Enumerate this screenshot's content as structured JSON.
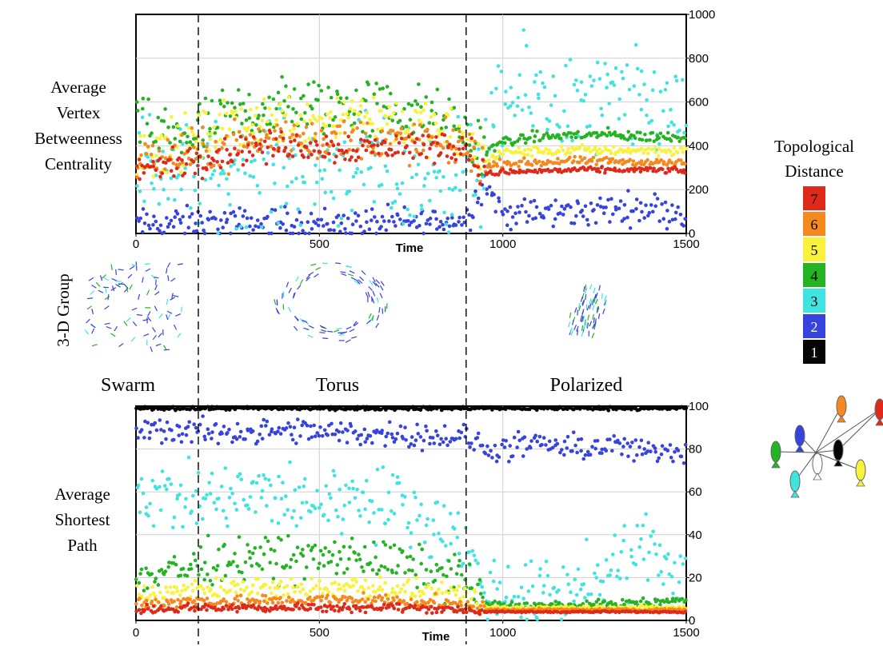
{
  "top_panel": {
    "ylabel_lines": [
      "Average",
      "Vertex",
      "Betweenness",
      "Centrality"
    ]
  },
  "bottom_panel": {
    "ylabel_lines": [
      "Average",
      "Shortest",
      "Path"
    ]
  },
  "group_label": "3-D Group",
  "phases": [
    "Swarm",
    "Torus",
    "Polarized"
  ],
  "legend": {
    "title_lines": [
      "Topological",
      "Distance"
    ],
    "items": [
      {
        "label": "7",
        "color": "#dd2a1a"
      },
      {
        "label": "6",
        "color": "#f5891f"
      },
      {
        "label": "5",
        "color": "#f9f23a"
      },
      {
        "label": "4",
        "color": "#25b324"
      },
      {
        "label": "3",
        "color": "#3fe3e0"
      },
      {
        "label": "2",
        "color": "#3743dd"
      },
      {
        "label": "1",
        "color": "#050505"
      }
    ]
  },
  "network_icon_colors": [
    "#25b324",
    "#3743dd",
    "#f5891f",
    "#dd2a1a",
    "#050505",
    "#f9f23a",
    "#3fe3e0",
    "#ffffff"
  ],
  "chart_data": [
    {
      "type": "scatter",
      "title": "",
      "xlabel": "Time",
      "ylabel": "Average Vertex Betweenness Centrality",
      "xlim": [
        0,
        1500
      ],
      "ylim": [
        0,
        1000
      ],
      "xticks": [
        0,
        500,
        1000,
        1500
      ],
      "yticks": [
        0,
        200,
        400,
        600,
        800,
        1000
      ],
      "phase_boundaries": [
        170,
        900
      ],
      "grid": true,
      "series": [
        {
          "name": "2",
          "color": "#3743dd",
          "x": [
            0,
            150,
            300,
            450,
            600,
            750,
            900,
            950,
            1000,
            1100,
            1200,
            1300,
            1400,
            1500
          ],
          "y": [
            40,
            50,
            45,
            50,
            45,
            50,
            60,
            240,
            90,
            90,
            100,
            110,
            120,
            90
          ]
        },
        {
          "name": "3",
          "color": "#3fe3e0",
          "x": [
            0,
            150,
            300,
            450,
            600,
            750,
            900,
            950,
            1000,
            1100,
            1200,
            1300,
            1400,
            1500
          ],
          "y": [
            330,
            260,
            290,
            290,
            290,
            230,
            280,
            290,
            590,
            640,
            560,
            600,
            580,
            560
          ]
        },
        {
          "name": "4",
          "color": "#25b324",
          "x": [
            0,
            150,
            300,
            450,
            600,
            750,
            900,
            950,
            1000,
            1100,
            1200,
            1300,
            1400,
            1500
          ],
          "y": [
            460,
            450,
            560,
            580,
            580,
            560,
            450,
            370,
            420,
            440,
            450,
            450,
            440,
            440
          ]
        },
        {
          "name": "5",
          "color": "#f9f23a",
          "x": [
            0,
            150,
            300,
            450,
            600,
            750,
            900,
            950,
            1000,
            1100,
            1200,
            1300,
            1400,
            1500
          ],
          "y": [
            360,
            420,
            520,
            510,
            560,
            500,
            420,
            330,
            370,
            375,
            380,
            380,
            380,
            375
          ]
        },
        {
          "name": "6",
          "color": "#f5891f",
          "x": [
            0,
            150,
            300,
            450,
            600,
            750,
            900,
            950,
            1000,
            1100,
            1200,
            1300,
            1400,
            1500
          ],
          "y": [
            330,
            360,
            420,
            440,
            430,
            420,
            400,
            300,
            320,
            325,
            330,
            330,
            325,
            320
          ]
        },
        {
          "name": "7",
          "color": "#dd2a1a",
          "x": [
            0,
            150,
            300,
            450,
            600,
            750,
            900,
            950,
            1000,
            1100,
            1200,
            1300,
            1400,
            1500
          ],
          "y": [
            290,
            330,
            390,
            400,
            390,
            400,
            400,
            270,
            280,
            285,
            290,
            290,
            290,
            285
          ]
        }
      ]
    },
    {
      "type": "scatter",
      "title": "",
      "xlabel": "Time",
      "ylabel": "Average Shortest Path",
      "xlim": [
        0,
        1500
      ],
      "ylim": [
        0,
        100
      ],
      "xticks": [
        0,
        500,
        1000,
        1500
      ],
      "yticks": [
        0,
        20,
        40,
        60,
        80,
        100
      ],
      "phase_boundaries": [
        170,
        900
      ],
      "grid": true,
      "series": [
        {
          "name": "1",
          "color": "#050505",
          "x": [
            0,
            250,
            500,
            750,
            1000,
            1250,
            1500
          ],
          "y": [
            99,
            99,
            99,
            99,
            99,
            99,
            99
          ]
        },
        {
          "name": "2",
          "color": "#3743dd",
          "x": [
            0,
            150,
            300,
            450,
            600,
            750,
            900,
            950,
            1000,
            1100,
            1200,
            1300,
            1400,
            1500
          ],
          "y": [
            89,
            88,
            88,
            88,
            87,
            87,
            85,
            80,
            80,
            82,
            80,
            82,
            78,
            80
          ]
        },
        {
          "name": "3",
          "color": "#3fe3e0",
          "x": [
            0,
            150,
            300,
            450,
            600,
            750,
            900,
            950,
            1000,
            1100,
            1200,
            1300,
            1400,
            1500
          ],
          "y": [
            60,
            55,
            58,
            55,
            58,
            52,
            35,
            15,
            12,
            12,
            16,
            20,
            38,
            18
          ]
        },
        {
          "name": "4",
          "color": "#25b324",
          "x": [
            0,
            150,
            300,
            450,
            600,
            750,
            900,
            950,
            1000,
            1100,
            1200,
            1300,
            1400,
            1500
          ],
          "y": [
            20,
            25,
            30,
            28,
            30,
            25,
            20,
            8,
            7,
            7,
            7,
            8,
            8,
            10
          ]
        },
        {
          "name": "5",
          "color": "#f9f23a",
          "x": [
            0,
            150,
            300,
            450,
            600,
            750,
            900,
            950,
            1000,
            1100,
            1200,
            1300,
            1400,
            1500
          ],
          "y": [
            12,
            14,
            15,
            14,
            16,
            14,
            10,
            6,
            6,
            6,
            6,
            6,
            6,
            6
          ]
        },
        {
          "name": "6",
          "color": "#f5891f",
          "x": [
            0,
            150,
            300,
            450,
            600,
            750,
            900,
            950,
            1000,
            1100,
            1200,
            1300,
            1400,
            1500
          ],
          "y": [
            8,
            9,
            9,
            9,
            10,
            9,
            7,
            5,
            5,
            5,
            5,
            5,
            5,
            5
          ]
        },
        {
          "name": "7",
          "color": "#dd2a1a",
          "x": [
            0,
            150,
            300,
            450,
            600,
            750,
            900,
            950,
            1000,
            1100,
            1200,
            1300,
            1400,
            1500
          ],
          "y": [
            5,
            6,
            6,
            6,
            6,
            6,
            5,
            4,
            4,
            4,
            4,
            4,
            4,
            4
          ]
        }
      ]
    }
  ]
}
